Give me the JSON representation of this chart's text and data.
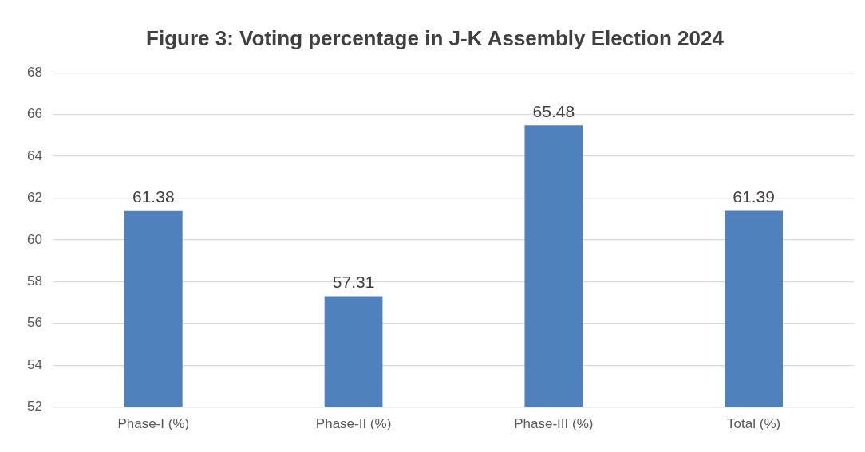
{
  "chart_data": {
    "type": "bar",
    "title": "Figure 3: Voting percentage in J-K Assembly Election 2024",
    "categories": [
      "Phase-I (%)",
      "Phase-II (%)",
      "Phase-III (%)",
      "Total (%)"
    ],
    "values": [
      61.38,
      57.31,
      65.48,
      61.39
    ],
    "color": "#4f81bd",
    "ylim": [
      52,
      68
    ],
    "yticks": [
      52,
      54,
      56,
      58,
      60,
      62,
      64,
      66,
      68
    ],
    "grid": "y",
    "data_labels": true,
    "legend": false
  }
}
